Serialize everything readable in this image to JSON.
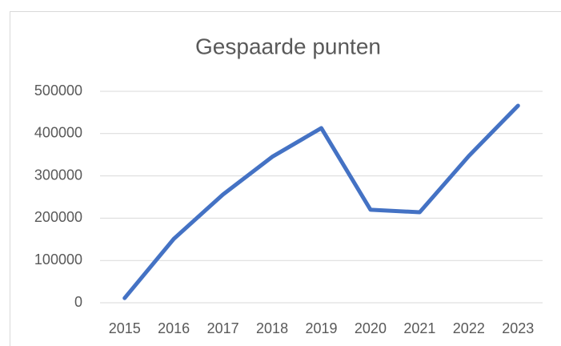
{
  "chart_data": {
    "type": "line",
    "title": "Gespaarde punten",
    "categories": [
      "2015",
      "2016",
      "2017",
      "2018",
      "2019",
      "2020",
      "2021",
      "2022",
      "2023"
    ],
    "values": [
      11000,
      151000,
      256000,
      345000,
      413000,
      220000,
      214000,
      347000,
      466000
    ],
    "color": "#4472c4",
    "ylim": [
      0,
      500000
    ],
    "yticks": [
      0,
      100000,
      200000,
      300000,
      400000,
      500000
    ],
    "grid": true
  }
}
